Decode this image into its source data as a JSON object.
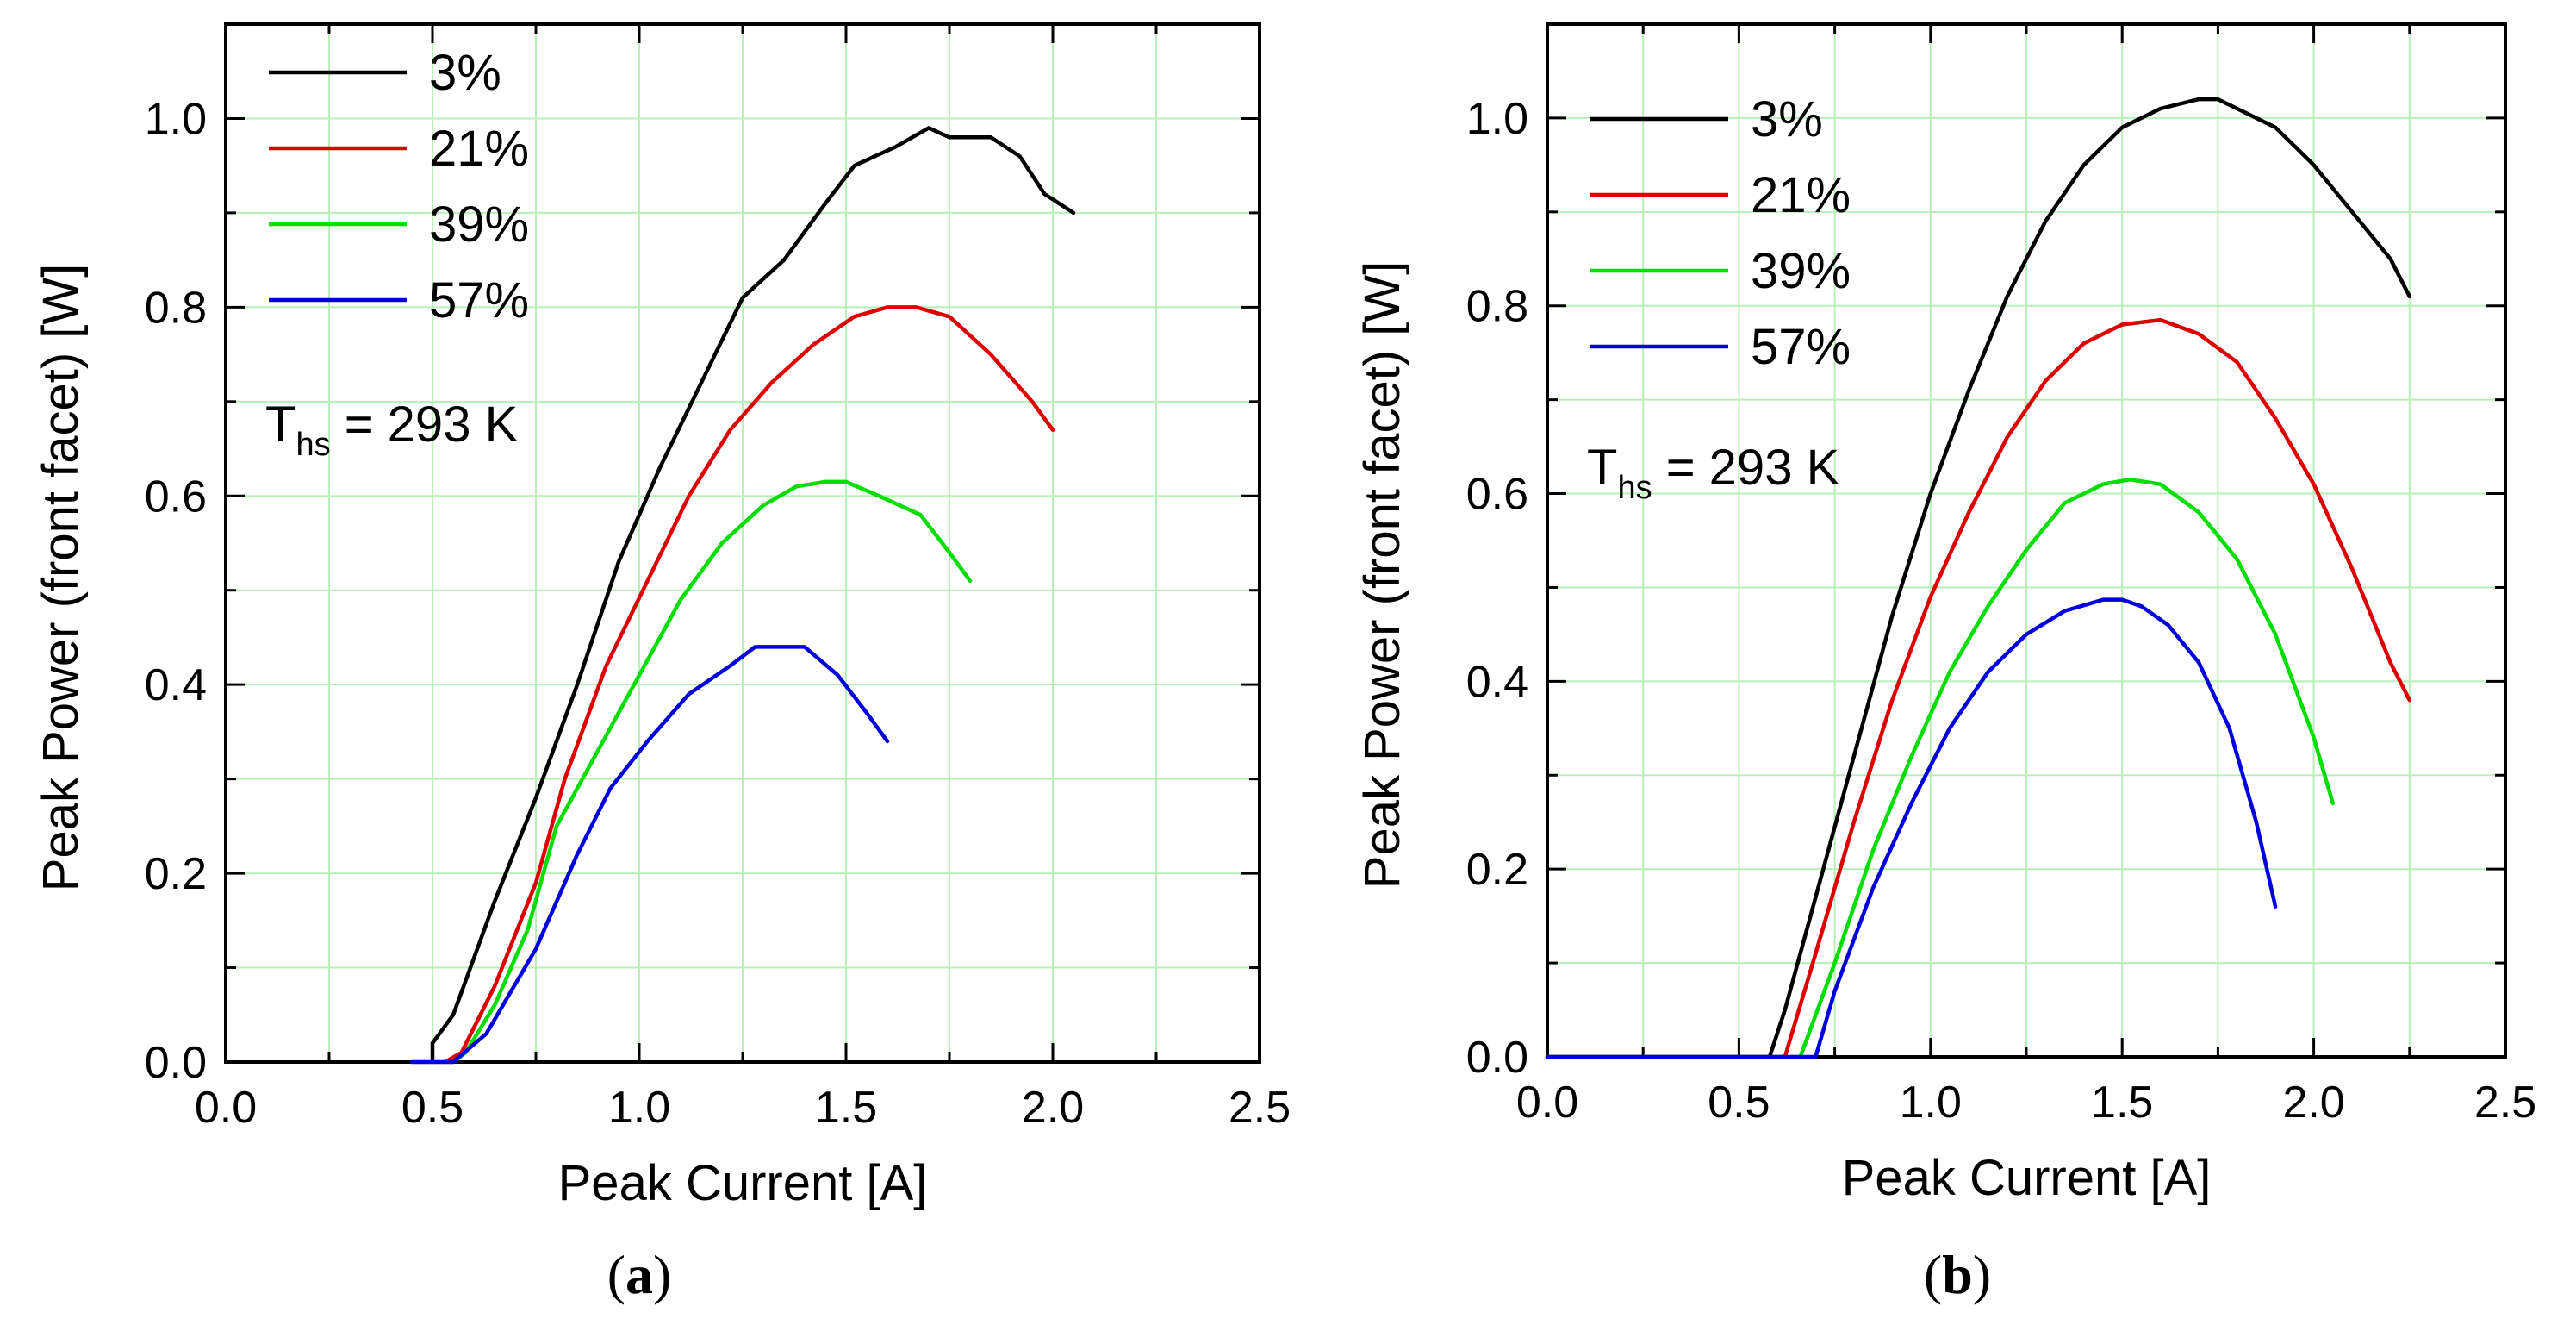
{
  "chart_data": [
    {
      "type": "line",
      "panel_label": "a",
      "xlabel": "Peak Current [A]",
      "ylabel": "Peak Power (front facet) [W]",
      "xlim": [
        0.0,
        2.5
      ],
      "ylim": [
        0.0,
        1.1
      ],
      "x_ticks": [
        "0.0",
        "0.5",
        "1.0",
        "1.5",
        "2.0",
        "2.5"
      ],
      "y_ticks": [
        "0.0",
        "0.2",
        "0.4",
        "0.6",
        "0.8",
        "1.0"
      ],
      "grid": true,
      "legend_position": "top-left",
      "annotation": {
        "main": "T",
        "sub": "hs",
        "rest": " = 293 K"
      },
      "series": [
        {
          "name": "3%",
          "color": "#000000",
          "x": [
            0.5,
            0.5,
            0.55,
            0.65,
            0.75,
            0.85,
            0.95,
            1.05,
            1.15,
            1.25,
            1.35,
            1.45,
            1.52,
            1.62,
            1.7,
            1.75,
            1.85,
            1.92,
            1.98,
            2.05
          ],
          "y": [
            0.0,
            0.02,
            0.05,
            0.17,
            0.28,
            0.4,
            0.53,
            0.63,
            0.72,
            0.81,
            0.85,
            0.91,
            0.95,
            0.97,
            0.99,
            0.98,
            0.98,
            0.96,
            0.92,
            0.9
          ]
        },
        {
          "name": "21%",
          "color": "#dd0000",
          "x": [
            0.53,
            0.57,
            0.65,
            0.75,
            0.82,
            0.92,
            1.02,
            1.12,
            1.22,
            1.32,
            1.42,
            1.52,
            1.6,
            1.67,
            1.75,
            1.85,
            1.95,
            2.0
          ],
          "y": [
            0.0,
            0.01,
            0.08,
            0.19,
            0.3,
            0.42,
            0.51,
            0.6,
            0.67,
            0.72,
            0.76,
            0.79,
            0.8,
            0.8,
            0.79,
            0.75,
            0.7,
            0.67
          ]
        },
        {
          "name": "39%",
          "color": "#00dd00",
          "x": [
            0.55,
            0.58,
            0.65,
            0.73,
            0.8,
            0.9,
            1.0,
            1.1,
            1.2,
            1.3,
            1.38,
            1.45,
            1.5,
            1.58,
            1.68,
            1.75,
            1.8
          ],
          "y": [
            0.0,
            0.01,
            0.06,
            0.14,
            0.25,
            0.33,
            0.41,
            0.49,
            0.55,
            0.59,
            0.61,
            0.615,
            0.615,
            0.6,
            0.58,
            0.54,
            0.51
          ]
        },
        {
          "name": "57%",
          "color": "#0000dd",
          "x": [
            0.45,
            0.55,
            0.63,
            0.75,
            0.85,
            0.93,
            1.02,
            1.12,
            1.22,
            1.28,
            1.33,
            1.4,
            1.48,
            1.55,
            1.6
          ],
          "y": [
            0.0,
            0.0,
            0.03,
            0.12,
            0.22,
            0.29,
            0.34,
            0.39,
            0.42,
            0.44,
            0.44,
            0.44,
            0.41,
            0.37,
            0.34
          ]
        }
      ]
    },
    {
      "type": "line",
      "panel_label": "b",
      "xlabel": "Peak Current [A]",
      "ylabel": "Peak Power (front facet) [W]",
      "xlim": [
        0.0,
        2.5
      ],
      "ylim": [
        0.0,
        1.1
      ],
      "x_ticks": [
        "0.0",
        "0.5",
        "1.0",
        "1.5",
        "2.0",
        "2.5"
      ],
      "y_ticks": [
        "0.0",
        "0.2",
        "0.4",
        "0.6",
        "0.8",
        "1.0"
      ],
      "grid": true,
      "legend_position": "top-left",
      "annotation": {
        "main": "T",
        "sub": "hs",
        "rest": " = 293 K"
      },
      "series": [
        {
          "name": "3%",
          "color": "#000000",
          "x": [
            0.0,
            0.58,
            0.62,
            0.7,
            0.8,
            0.9,
            1.0,
            1.1,
            1.2,
            1.3,
            1.4,
            1.5,
            1.6,
            1.7,
            1.75,
            1.8,
            1.9,
            2.0,
            2.1,
            2.2,
            2.25
          ],
          "y": [
            0.0,
            0.0,
            0.05,
            0.17,
            0.32,
            0.47,
            0.6,
            0.71,
            0.81,
            0.89,
            0.95,
            0.99,
            1.01,
            1.02,
            1.02,
            1.01,
            0.99,
            0.95,
            0.9,
            0.85,
            0.81
          ]
        },
        {
          "name": "21%",
          "color": "#dd0000",
          "x": [
            0.0,
            0.62,
            0.7,
            0.8,
            0.9,
            1.0,
            1.1,
            1.2,
            1.3,
            1.4,
            1.5,
            1.6,
            1.7,
            1.8,
            1.9,
            2.0,
            2.1,
            2.2,
            2.25
          ],
          "y": [
            0.0,
            0.0,
            0.11,
            0.25,
            0.38,
            0.49,
            0.58,
            0.66,
            0.72,
            0.76,
            0.78,
            0.785,
            0.77,
            0.74,
            0.68,
            0.61,
            0.52,
            0.42,
            0.38
          ]
        },
        {
          "name": "39%",
          "color": "#00dd00",
          "x": [
            0.0,
            0.66,
            0.75,
            0.85,
            0.95,
            1.05,
            1.15,
            1.25,
            1.35,
            1.45,
            1.52,
            1.6,
            1.7,
            1.8,
            1.9,
            2.0,
            2.05
          ],
          "y": [
            0.0,
            0.0,
            0.1,
            0.22,
            0.32,
            0.41,
            0.48,
            0.54,
            0.59,
            0.61,
            0.615,
            0.61,
            0.58,
            0.53,
            0.45,
            0.34,
            0.27
          ]
        },
        {
          "name": "57%",
          "color": "#0000dd",
          "x": [
            0.0,
            0.7,
            0.75,
            0.85,
            0.95,
            1.05,
            1.15,
            1.25,
            1.35,
            1.45,
            1.5,
            1.55,
            1.62,
            1.7,
            1.78,
            1.85,
            1.9
          ],
          "y": [
            0.0,
            0.0,
            0.07,
            0.18,
            0.27,
            0.35,
            0.41,
            0.45,
            0.475,
            0.487,
            0.487,
            0.48,
            0.46,
            0.42,
            0.35,
            0.25,
            0.16
          ]
        }
      ]
    }
  ]
}
